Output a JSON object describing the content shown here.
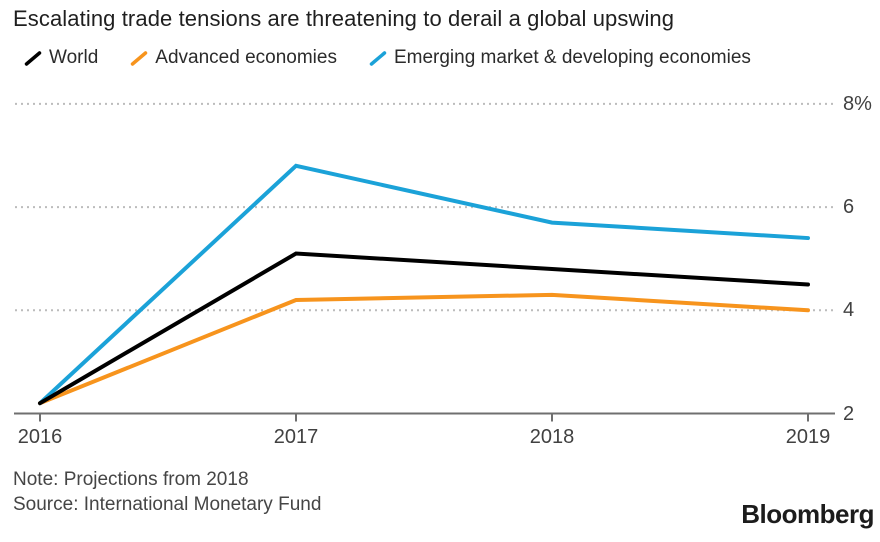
{
  "title": "Escalating trade tensions are threatening to derail a global upswing",
  "legend": [
    {
      "label": "World",
      "color": "#000000"
    },
    {
      "label": "Advanced economies",
      "color": "#f7941d"
    },
    {
      "label": "Emerging market & developing economies",
      "color": "#1ba2d8"
    }
  ],
  "chart_data": {
    "type": "line",
    "title": "Escalating trade tensions are threatening to derail a global upswing",
    "x": [
      "2016",
      "2017",
      "2018",
      "2019"
    ],
    "series": [
      {
        "name": "World",
        "color": "#000000",
        "values": [
          2.2,
          5.1,
          4.8,
          4.5
        ]
      },
      {
        "name": "Advanced economies",
        "color": "#f7941d",
        "values": [
          2.2,
          4.2,
          4.3,
          4.0
        ]
      },
      {
        "name": "Emerging market & developing economies",
        "color": "#1ba2d8",
        "values": [
          2.2,
          6.8,
          5.7,
          5.4
        ]
      }
    ],
    "ylim": [
      2,
      8
    ],
    "yticks": [
      {
        "value": 8,
        "label": "8%"
      },
      {
        "value": 6,
        "label": "6"
      },
      {
        "value": 4,
        "label": "4"
      },
      {
        "value": 2,
        "label": "2"
      }
    ],
    "gridlines": [
      4,
      6,
      8
    ],
    "grid_style": "dotted",
    "legend_position": "top",
    "ylabel": "",
    "xlabel": ""
  },
  "note": "Note: Projections from 2018",
  "source": "Source: International Monetary Fund",
  "brand": "Bloomberg",
  "colors": {
    "grid": "#bcbcbc",
    "axis": "#6f6f6f",
    "world": "#000000",
    "advanced": "#f7941d",
    "emerging": "#1ba2d8"
  }
}
